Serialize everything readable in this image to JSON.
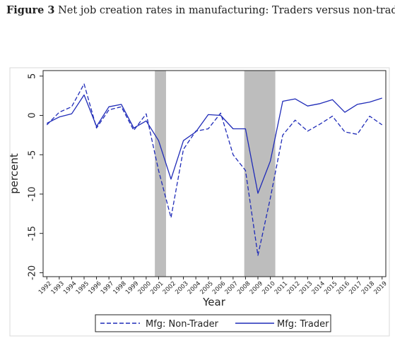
{
  "figure": {
    "label": "Figure 3",
    "caption": "Net job creation rates in manufacturing: Traders versus non-traders"
  },
  "chart_data": {
    "type": "line",
    "xlabel": "Year",
    "ylabel": "percent",
    "x": [
      1992,
      1993,
      1994,
      1995,
      1996,
      1997,
      1998,
      1999,
      2000,
      2001,
      2002,
      2003,
      2004,
      2005,
      2006,
      2007,
      2008,
      2009,
      2010,
      2011,
      2012,
      2013,
      2014,
      2015,
      2016,
      2017,
      2018,
      2019
    ],
    "x_tick_labels": [
      "1992",
      "1993",
      "1994",
      "1995",
      "1996",
      "1997",
      "1998",
      "1999",
      "2000",
      "2001",
      "2002",
      "2003",
      "2004",
      "2005",
      "2006",
      "2007",
      "2008",
      "2009",
      "2010",
      "2011",
      "2012",
      "2013",
      "2014",
      "2015",
      "2016",
      "2017",
      "2018",
      "2019"
    ],
    "y_ticks": [
      5,
      0,
      -5,
      -10,
      -15,
      -20
    ],
    "y_tick_labels": [
      "5",
      "0",
      "-5",
      "-10",
      "-15",
      "-20"
    ],
    "xlim": [
      1991.7,
      2019.3
    ],
    "ylim": [
      -20.5,
      5.7
    ],
    "recession_shading": [
      [
        2000.7,
        2001.6
      ],
      [
        2007.9,
        2010.4
      ]
    ],
    "series": [
      {
        "name": "Mfg: Non-Trader",
        "style": "dashed",
        "color": "#1f2bb8",
        "values": [
          -1.2,
          0.4,
          1.1,
          4.0,
          -1.6,
          0.7,
          1.1,
          -1.9,
          0.2,
          -7.0,
          -13.0,
          -4.3,
          -2.0,
          -1.7,
          0.3,
          -5.0,
          -7.0,
          -17.8,
          -10.5,
          -2.5,
          -0.6,
          -2.0,
          -1.1,
          -0.1,
          -2.1,
          -2.4,
          -0.1,
          -1.2
        ]
      },
      {
        "name": "Mfg: Trader",
        "style": "solid",
        "color": "#1f2bb8",
        "values": [
          -1.0,
          -0.2,
          0.2,
          2.6,
          -1.4,
          1.1,
          1.4,
          -1.6,
          -0.7,
          -3.2,
          -8.1,
          -3.2,
          -2.1,
          0.1,
          0.0,
          -1.7,
          -1.7,
          -9.9,
          -5.8,
          1.8,
          2.1,
          1.2,
          1.5,
          2.0,
          0.4,
          1.4,
          1.7,
          2.2
        ]
      }
    ],
    "legend": {
      "position": "bottom",
      "layout": "horizontal"
    },
    "grid": false,
    "colors": {
      "line": "#1f2bb8",
      "shade": "#bdbdbd",
      "frame": "#222222"
    }
  }
}
